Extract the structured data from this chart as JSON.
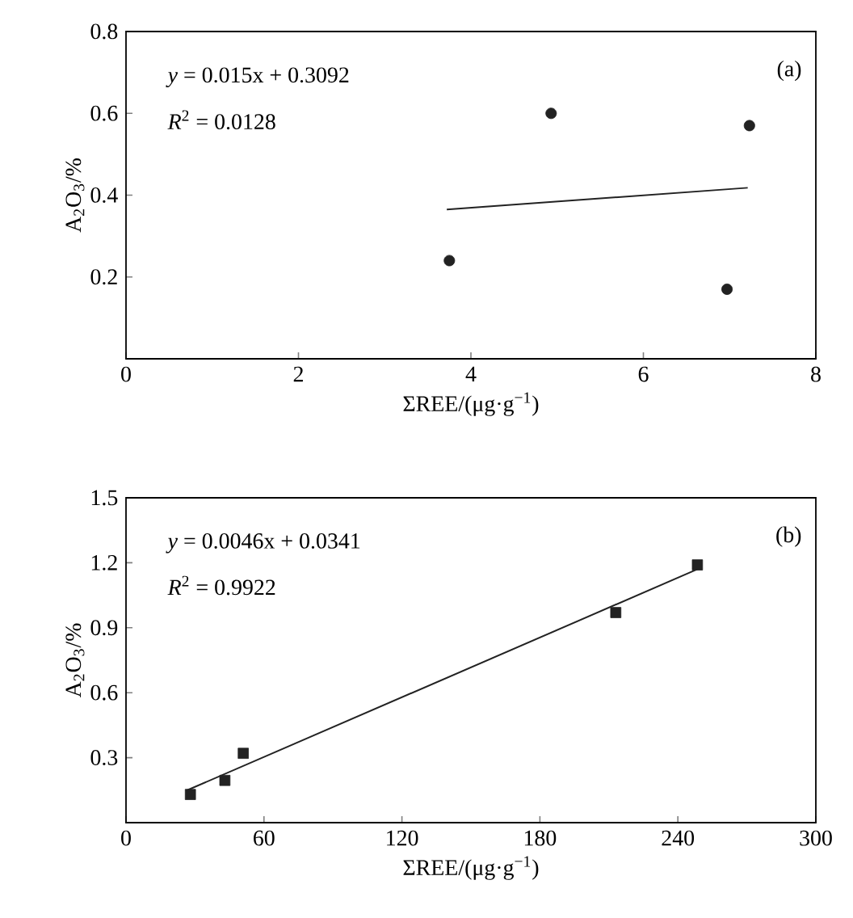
{
  "chart_data": [
    {
      "type": "scatter",
      "xlabel": "ΣREE/(μg·g$^{−1}$)",
      "ylabel": "A$_{2}$O$_{3}$/%",
      "annotations": [
        "*y* = 0.015x + 0.3092",
        "*R*$^{2}$ = 0.0128",
        "(a)"
      ],
      "xlim": [
        0,
        8
      ],
      "ylim": [
        0,
        0.8
      ],
      "xticks": [
        0,
        2,
        4,
        6,
        8
      ],
      "yticks": [
        0.2,
        0.4,
        0.6,
        0.8
      ],
      "grid": false,
      "series": [
        {
          "marker": "circle",
          "color": "#222222",
          "x": [
            3.75,
            4.93,
            7.23,
            6.97
          ],
          "values": [
            0.24,
            0.6,
            0.57,
            0.17
          ]
        },
        {
          "type": "line",
          "marker": "none",
          "line_style": "solid",
          "color": "#222222",
          "x": [
            3.72,
            7.21
          ],
          "values": [
            0.365,
            0.418
          ]
        }
      ]
    },
    {
      "type": "scatter",
      "xlabel": "ΣREE/(μg·g$^{−1}$)",
      "ylabel": "A$_{2}$O$_{3}$/%",
      "annotations": [
        "*y* = 0.0046x + 0.0341",
        "*R*$^{2}$ = 0.9922",
        "(b)"
      ],
      "xlim": [
        0,
        300
      ],
      "ylim": [
        0,
        1.5
      ],
      "xticks": [
        0,
        60,
        120,
        180,
        240,
        300
      ],
      "yticks": [
        0.3,
        0.6,
        0.9,
        1.2,
        1.5
      ],
      "grid": false,
      "series": [
        {
          "marker": "square",
          "color": "#222222",
          "x": [
            28,
            43,
            51,
            213,
            248.5
          ],
          "values": [
            0.13,
            0.195,
            0.32,
            0.97,
            1.19
          ]
        },
        {
          "type": "line",
          "marker": "none",
          "line_style": "solid",
          "color": "#222222",
          "x": [
            26.7,
            248.5
          ],
          "values": [
            0.15,
            1.17
          ]
        }
      ]
    }
  ]
}
